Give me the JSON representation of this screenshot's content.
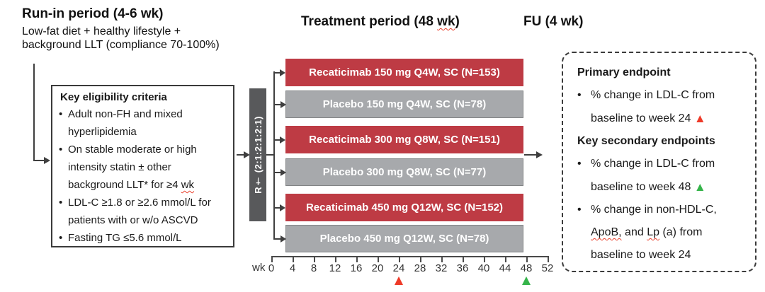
{
  "header": {
    "run_in_title": "Run-in period (4-6 wk)",
    "run_in_lines": [
      "Low-fat diet + healthy lifestyle +",
      "background LLT (compliance 70-100%)"
    ],
    "treatment_title_prefix": "Treatment period (48",
    "treatment_title_wk": "wk",
    "treatment_title_suffix": ")",
    "fu_title": "FU (4 wk)"
  },
  "bullet_glyph": "•",
  "eligibility": {
    "title": "Key eligibility criteria",
    "bullets": [
      {
        "lines": [
          "Adult non-FH and mixed",
          "hyperlipidemia"
        ]
      },
      {
        "lines": [
          "On stable moderate or high",
          "intensity statin ± other",
          "background LLT* for ≥4"
        ],
        "squiggle_word": "wk"
      },
      {
        "lines": [
          "LDL-C ≥1.8 or ≥2.6 mmol/L for",
          "patients with or w/o ASCVD"
        ]
      },
      {
        "lines": [
          "Fasting TG ≤5.6 mmol/L"
        ]
      }
    ]
  },
  "randomization": {
    "label": "R† (2:1:2:1:2:1)"
  },
  "arms": [
    {
      "label": "Recaticimab 150 mg Q4W, SC (N=153)",
      "type": "recaticimab"
    },
    {
      "label": "Placebo 150 mg Q4W, SC (N=78)",
      "type": "placebo"
    },
    {
      "label": "Recaticimab 300 mg Q8W, SC (N=151)",
      "type": "recaticimab"
    },
    {
      "label": "Placebo 300 mg Q8W, SC (N=77)",
      "type": "placebo"
    },
    {
      "label": "Recaticimab 450 mg Q12W, SC (N=152)",
      "type": "recaticimab"
    },
    {
      "label": "Placebo 450 mg Q12W, SC (N=78)",
      "type": "placebo"
    }
  ],
  "axis": {
    "unit_label": "wk",
    "weeks": [
      0,
      4,
      8,
      12,
      16,
      20,
      24,
      28,
      32,
      36,
      40,
      44,
      48,
      52
    ],
    "markers": [
      {
        "week": 24,
        "color": "#ee3a28"
      },
      {
        "week": 48,
        "color": "#35b44a"
      }
    ]
  },
  "endpoints": {
    "primary_title": "Primary endpoint",
    "primary_bullet_line1": "% change in LDL-C from",
    "primary_bullet_line2": "baseline to week 24",
    "secondary_title": "Key secondary endpoints",
    "secondary_bullet1_line1": "% change in LDL-C from",
    "secondary_bullet1_line2": "baseline to week 48",
    "secondary_bullet2_line1": "% change in non-HDL-C,",
    "secondary_bullet2_l2_sq1": "ApoB,",
    "secondary_bullet2_l2_mid": "and",
    "secondary_bullet2_l2_sq2": "Lp",
    "secondary_bullet2_l2_end": "(a) from",
    "secondary_bullet2_line3": "baseline to week 24",
    "marker_up": "▲"
  },
  "colors": {
    "recaticimab": "#be3b44",
    "placebo": "#a7a9ac",
    "randomization_bar": "#58595b"
  }
}
